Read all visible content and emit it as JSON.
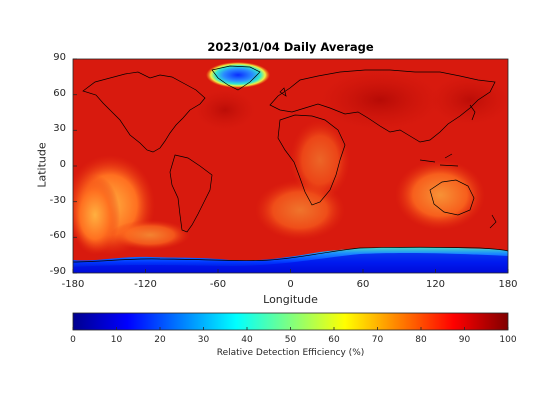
{
  "map": {
    "title": "2023/01/04 Daily Average",
    "xlabel": "Longitude",
    "ylabel": "Latitude",
    "x_ticks": [
      "-180",
      "-120",
      "-60",
      "0",
      "60",
      "120",
      "180"
    ],
    "y_ticks": [
      "90",
      "60",
      "30",
      "0",
      "-30",
      "-60",
      "-90"
    ],
    "x_range": [
      -180,
      180
    ],
    "y_range": [
      -90,
      90
    ],
    "projection": "equirectangular"
  },
  "colorbar": {
    "label": "Relative Detection Efficiency (%)",
    "ticks": [
      "0",
      "10",
      "20",
      "30",
      "40",
      "50",
      "60",
      "70",
      "80",
      "90",
      "100"
    ],
    "range": [
      0,
      100
    ],
    "colormap": "jet",
    "orientation": "horizontal"
  },
  "colors": {
    "dominant": "#d81a0e",
    "low": "#00008f",
    "high": "#800000"
  }
}
